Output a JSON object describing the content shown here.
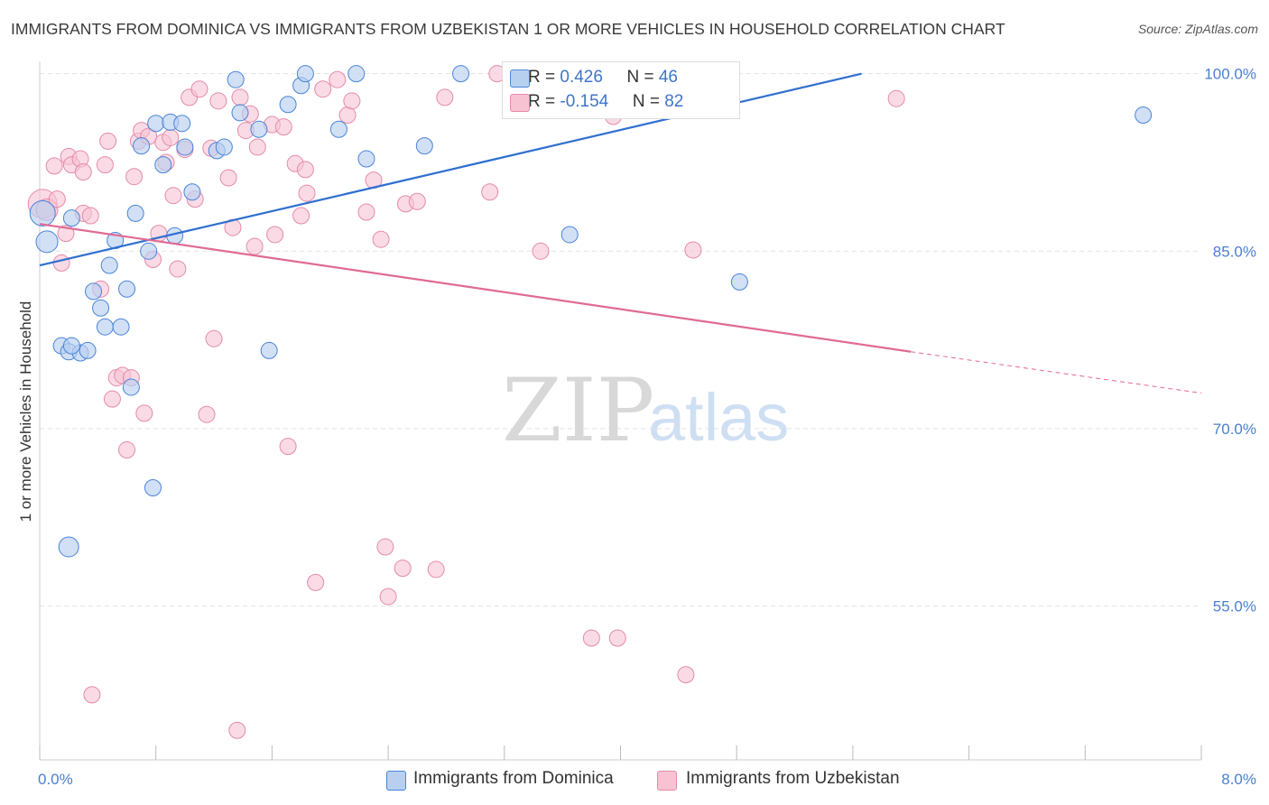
{
  "title": "IMMIGRANTS FROM DOMINICA VS IMMIGRANTS FROM UZBEKISTAN 1 OR MORE VEHICLES IN HOUSEHOLD CORRELATION CHART",
  "source": "Source: ZipAtlas.com",
  "watermark": {
    "zip": "ZIP",
    "atlas": "atlas"
  },
  "legend": {
    "rows": [
      {
        "r_label": "R = ",
        "r_value": "0.426",
        "n_label": "N = ",
        "n_value": "46"
      },
      {
        "r_label": "R = ",
        "r_value": "-0.154",
        "n_label": "N = ",
        "n_value": "82"
      }
    ]
  },
  "bottom_legend": [
    "Immigrants from Dominica",
    "Immigrants from Uzbekistan"
  ],
  "colors": {
    "dominica_fill": "#b8d0f0",
    "dominica_stroke": "#4a84d8",
    "dominica_line": "#2f6fd0",
    "uzbek_fill": "#f7c3d3",
    "uzbek_stroke": "#e58aa8",
    "uzbek_line": "#e06a95",
    "axis_text": "#4a7fd1",
    "grid": "#e3e3e3"
  },
  "chart_data": {
    "type": "scatter",
    "title": "IMMIGRANTS FROM DOMINICA VS IMMIGRANTS FROM UZBEKISTAN 1 OR MORE VEHICLES IN HOUSEHOLD CORRELATION CHART",
    "xlabel": "",
    "ylabel": "1 or more Vehicles in Household",
    "xlim": [
      0.0,
      8.0
    ],
    "ylim": [
      42.0,
      101.5
    ],
    "x_tick_labels": [
      "0.0%",
      "8.0%"
    ],
    "y_ticks": [
      100.0,
      85.0,
      70.0,
      55.0
    ],
    "y_tick_labels": [
      "100.0%",
      "85.0%",
      "70.0%",
      "55.0%"
    ],
    "grid": true,
    "series": [
      {
        "name": "Immigrants from Dominica",
        "points": [
          [
            0.02,
            88.2,
            14
          ],
          [
            0.05,
            85.8,
            12
          ],
          [
            0.2,
            60.0,
            11
          ],
          [
            0.15,
            77.0,
            9
          ],
          [
            0.2,
            76.5,
            9
          ],
          [
            0.28,
            76.4,
            9
          ],
          [
            0.33,
            76.6,
            9
          ],
          [
            0.22,
            77.0,
            9
          ],
          [
            0.22,
            87.8,
            9
          ],
          [
            0.37,
            81.6,
            9
          ],
          [
            0.42,
            80.2,
            9
          ],
          [
            0.45,
            78.6,
            9
          ],
          [
            0.48,
            83.8,
            9
          ],
          [
            0.52,
            85.9,
            9
          ],
          [
            0.56,
            78.6,
            9
          ],
          [
            0.6,
            81.8,
            9
          ],
          [
            0.63,
            73.5,
            9
          ],
          [
            0.66,
            88.2,
            9
          ],
          [
            0.7,
            93.9,
            9
          ],
          [
            0.75,
            85.0,
            9
          ],
          [
            0.78,
            65.0,
            9
          ],
          [
            0.8,
            95.8,
            9
          ],
          [
            0.85,
            92.3,
            9
          ],
          [
            0.9,
            95.9,
            9
          ],
          [
            0.93,
            86.3,
            9
          ],
          [
            0.98,
            95.8,
            9
          ],
          [
            1.0,
            93.8,
            9
          ],
          [
            1.05,
            90.0,
            9
          ],
          [
            1.22,
            93.5,
            9
          ],
          [
            1.27,
            93.8,
            9
          ],
          [
            1.35,
            99.5,
            9
          ],
          [
            1.38,
            96.7,
            9
          ],
          [
            1.51,
            95.3,
            9
          ],
          [
            1.58,
            76.6,
            9
          ],
          [
            1.71,
            97.4,
            9
          ],
          [
            1.8,
            99.0,
            9
          ],
          [
            1.83,
            100.0,
            9
          ],
          [
            2.06,
            95.3,
            9
          ],
          [
            2.18,
            100.0,
            9
          ],
          [
            2.25,
            92.8,
            9
          ],
          [
            2.65,
            93.9,
            9
          ],
          [
            2.9,
            100.0,
            9
          ],
          [
            3.65,
            86.4,
            9
          ],
          [
            4.2,
            100.0,
            9
          ],
          [
            4.82,
            82.4,
            9
          ],
          [
            7.6,
            96.5,
            9
          ]
        ]
      },
      {
        "name": "Immigrants from Uzbekistan",
        "points": [
          [
            0.02,
            89.0,
            16
          ],
          [
            0.05,
            88.5,
            12
          ],
          [
            0.1,
            92.2,
            9
          ],
          [
            0.15,
            84.0,
            9
          ],
          [
            0.18,
            86.5,
            9
          ],
          [
            0.2,
            93.0,
            9
          ],
          [
            0.22,
            92.3,
            9
          ],
          [
            0.28,
            92.8,
            9
          ],
          [
            0.3,
            91.7,
            9
          ],
          [
            0.3,
            88.2,
            9
          ],
          [
            0.35,
            88.0,
            9
          ],
          [
            0.36,
            47.5,
            9
          ],
          [
            0.42,
            81.8,
            9
          ],
          [
            0.45,
            92.3,
            9
          ],
          [
            0.47,
            94.3,
            9
          ],
          [
            0.5,
            72.5,
            9
          ],
          [
            0.53,
            74.3,
            9
          ],
          [
            0.57,
            74.5,
            9
          ],
          [
            0.6,
            68.2,
            9
          ],
          [
            0.63,
            74.3,
            9
          ],
          [
            0.65,
            91.3,
            9
          ],
          [
            0.68,
            94.3,
            9
          ],
          [
            0.7,
            95.2,
            9
          ],
          [
            0.72,
            71.3,
            9
          ],
          [
            0.75,
            94.7,
            9
          ],
          [
            0.78,
            84.3,
            9
          ],
          [
            0.82,
            86.5,
            9
          ],
          [
            0.85,
            94.2,
            9
          ],
          [
            0.87,
            92.5,
            9
          ],
          [
            0.9,
            94.6,
            9
          ],
          [
            0.92,
            89.7,
            9
          ],
          [
            0.95,
            83.5,
            9
          ],
          [
            1.0,
            93.6,
            9
          ],
          [
            1.03,
            98.0,
            9
          ],
          [
            1.07,
            89.4,
            9
          ],
          [
            1.1,
            98.7,
            9
          ],
          [
            1.15,
            71.2,
            9
          ],
          [
            1.18,
            93.7,
            9
          ],
          [
            1.2,
            77.6,
            9
          ],
          [
            1.23,
            97.7,
            9
          ],
          [
            1.3,
            91.2,
            9
          ],
          [
            1.33,
            87.0,
            9
          ],
          [
            1.36,
            44.5,
            9
          ],
          [
            1.38,
            98.0,
            9
          ],
          [
            1.42,
            95.2,
            9
          ],
          [
            1.45,
            96.6,
            9
          ],
          [
            1.48,
            85.4,
            9
          ],
          [
            1.5,
            93.8,
            9
          ],
          [
            1.6,
            95.7,
            9
          ],
          [
            1.62,
            86.4,
            9
          ],
          [
            1.68,
            95.5,
            9
          ],
          [
            1.71,
            68.5,
            9
          ],
          [
            1.76,
            92.4,
            9
          ],
          [
            1.8,
            88.0,
            9
          ],
          [
            1.83,
            91.9,
            9
          ],
          [
            1.84,
            89.9,
            9
          ],
          [
            1.9,
            57.0,
            9
          ],
          [
            1.95,
            98.7,
            9
          ],
          [
            2.05,
            99.5,
            9
          ],
          [
            2.12,
            96.5,
            9
          ],
          [
            2.15,
            97.7,
            9
          ],
          [
            2.25,
            88.3,
            9
          ],
          [
            2.3,
            91.0,
            9
          ],
          [
            2.35,
            86.0,
            9
          ],
          [
            2.38,
            60.0,
            9
          ],
          [
            2.4,
            55.8,
            9
          ],
          [
            2.5,
            58.2,
            9
          ],
          [
            2.52,
            89.0,
            9
          ],
          [
            2.6,
            89.2,
            9
          ],
          [
            2.73,
            58.1,
            9
          ],
          [
            2.79,
            98.0,
            9
          ],
          [
            3.1,
            90.0,
            9
          ],
          [
            3.15,
            100.0,
            9
          ],
          [
            3.45,
            85.0,
            9
          ],
          [
            3.8,
            52.3,
            9
          ],
          [
            3.95,
            96.4,
            9
          ],
          [
            3.98,
            52.3,
            9
          ],
          [
            4.45,
            49.2,
            9
          ],
          [
            4.5,
            85.1,
            9
          ],
          [
            5.9,
            97.9,
            9
          ],
          [
            3.5,
            100.0,
            9
          ],
          [
            0.12,
            89.4,
            9
          ]
        ]
      }
    ],
    "trend_lines": [
      {
        "series": "Immigrants from Dominica",
        "x": [
          0.0,
          5.66
        ],
        "y": [
          83.8,
          100.0
        ]
      },
      {
        "series": "Immigrants from Uzbekistan",
        "x": [
          0.0,
          6.0
        ],
        "y": [
          87.3,
          76.5
        ],
        "dashed_extension_x": [
          6.0,
          8.0
        ],
        "dashed_extension_y": [
          76.5,
          73.0
        ]
      }
    ]
  }
}
